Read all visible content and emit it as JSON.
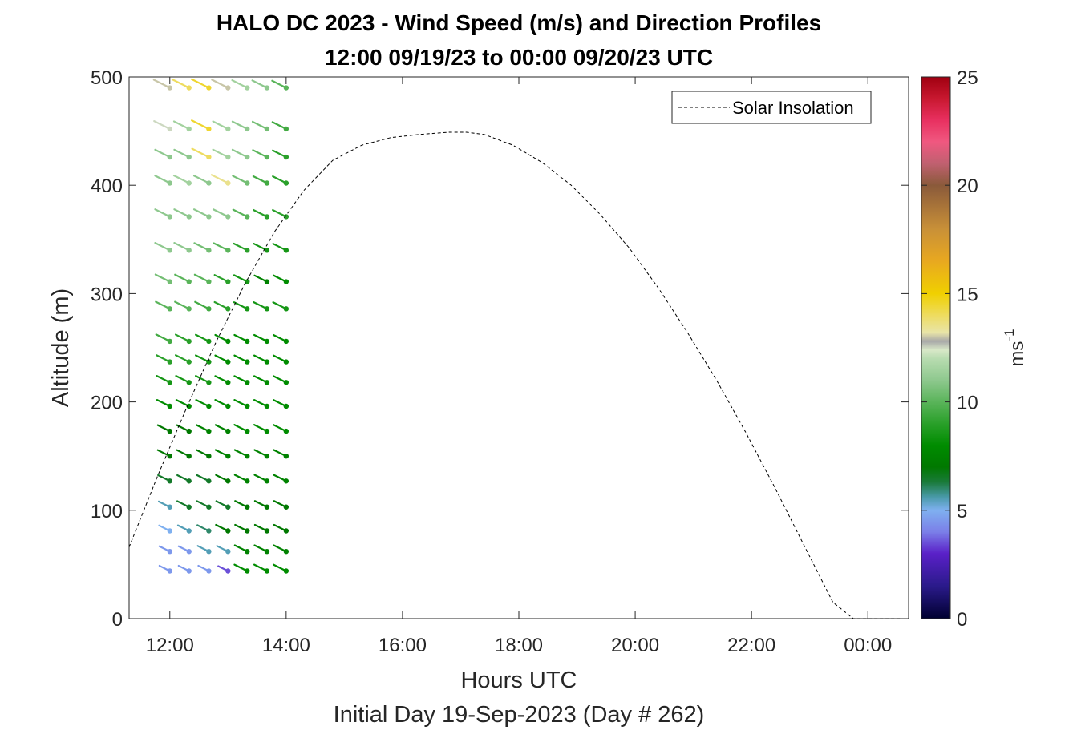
{
  "chart_data": {
    "type": "scatter",
    "title_line1": "HALO DC 2023 - Wind Speed (m/s) and Direction Profiles",
    "title_line2": "12:00 09/19/23 to 00:00 09/20/23  UTC",
    "xlabel": "Hours UTC",
    "ylabel": "Altitude (m)",
    "footer": "Initial Day 19-Sep-2023 (Day # 262)",
    "x_unit": "hours since 00:00 09/19/23 UTC",
    "xlim": [
      11.3,
      24.7
    ],
    "ylim": [
      0,
      500
    ],
    "x_ticks": [
      {
        "value": 12,
        "label": "12:00"
      },
      {
        "value": 14,
        "label": "14:00"
      },
      {
        "value": 16,
        "label": "16:00"
      },
      {
        "value": 18,
        "label": "18:00"
      },
      {
        "value": 20,
        "label": "20:00"
      },
      {
        "value": 22,
        "label": "22:00"
      },
      {
        "value": 24,
        "label": "00:00"
      }
    ],
    "y_ticks": [
      0,
      100,
      200,
      300,
      400,
      500
    ],
    "legend": {
      "label": "Solar Insolation",
      "position": "top-right"
    },
    "colorbar": {
      "label": "ms",
      "label_exponent": "-1",
      "min": 0,
      "max": 25,
      "ticks": [
        0,
        5,
        10,
        15,
        20,
        25
      ]
    },
    "solar_insolation": {
      "style": "dashed black",
      "x": [
        11.3,
        11.8,
        12.3,
        12.8,
        13.3,
        13.8,
        14.3,
        14.8,
        15.3,
        15.8,
        16.3,
        16.8,
        17.1,
        17.4,
        17.9,
        18.4,
        18.9,
        19.4,
        19.9,
        20.4,
        20.9,
        21.4,
        21.9,
        22.4,
        22.9,
        23.4,
        23.75,
        24.0,
        24.3,
        24.6
      ],
      "y": [
        66,
        133,
        196,
        256,
        310,
        357,
        395,
        423,
        437,
        444,
        447,
        449,
        449,
        447,
        437,
        421,
        400,
        373,
        342,
        305,
        264,
        220,
        172,
        121,
        68,
        15,
        0,
        0,
        0,
        0
      ]
    },
    "wind_barbs": {
      "times": [
        12.0,
        12.33,
        12.67,
        13.0,
        13.33,
        13.67,
        14.0
      ],
      "altitudes": [
        44,
        62,
        81,
        103,
        127,
        150,
        173,
        196,
        218,
        237,
        256,
        286,
        311,
        340,
        371,
        402,
        426,
        452,
        490
      ],
      "speed_rows": [
        [
          4.5,
          4.5,
          4.5,
          3.5,
          8.0,
          8.0,
          8.0
        ],
        [
          4.5,
          4.5,
          5.5,
          5.5,
          7.5,
          7.5,
          7.5
        ],
        [
          5.0,
          5.5,
          6.0,
          7.0,
          7.0,
          7.0,
          7.0
        ],
        [
          5.5,
          6.5,
          6.5,
          6.5,
          7.0,
          7.0,
          7.0
        ],
        [
          6.5,
          6.5,
          6.5,
          7.0,
          7.5,
          7.5,
          7.5
        ],
        [
          7.0,
          7.0,
          7.0,
          7.5,
          7.5,
          7.5,
          7.5
        ],
        [
          7.0,
          7.0,
          7.5,
          7.5,
          8.0,
          8.0,
          8.0
        ],
        [
          8.0,
          8.0,
          8.0,
          8.0,
          8.0,
          8.0,
          8.0
        ],
        [
          8.5,
          8.5,
          8.5,
          8.0,
          8.0,
          8.0,
          8.0
        ],
        [
          9.0,
          9.0,
          8.5,
          8.0,
          8.0,
          8.0,
          8.0
        ],
        [
          9.5,
          9.0,
          8.5,
          8.0,
          8.0,
          8.0,
          8.0
        ],
        [
          10.0,
          10.0,
          9.5,
          9.0,
          8.5,
          8.5,
          8.5
        ],
        [
          10.5,
          10.0,
          10.0,
          9.0,
          8.5,
          7.5,
          8.0
        ],
        [
          11.0,
          11.0,
          10.5,
          10.0,
          9.0,
          8.5,
          8.5
        ],
        [
          11.0,
          11.0,
          11.0,
          11.0,
          10.0,
          9.0,
          9.0
        ],
        [
          11.0,
          11.5,
          11.0,
          13.5,
          10.5,
          9.5,
          9.0
        ],
        [
          11.0,
          11.0,
          14.0,
          11.5,
          11.0,
          10.0,
          9.0
        ],
        [
          12.5,
          11.5,
          14.5,
          11.5,
          11.0,
          10.5,
          9.5
        ],
        [
          13.0,
          14.0,
          14.5,
          13.0,
          11.5,
          11.0,
          10.0
        ]
      ],
      "direction_from_deg": 300
    },
    "colors": {
      "colormap": [
        {
          "v": 0,
          "c": "#000030"
        },
        {
          "v": 1.5,
          "c": "#2a1a8a"
        },
        {
          "v": 3,
          "c": "#5a20c8"
        },
        {
          "v": 4,
          "c": "#7b7fe8"
        },
        {
          "v": 5,
          "c": "#7fb0f0"
        },
        {
          "v": 5.6,
          "c": "#4a9aaa"
        },
        {
          "v": 6.3,
          "c": "#1a7a3a"
        },
        {
          "v": 7,
          "c": "#007800"
        },
        {
          "v": 8,
          "c": "#008c00"
        },
        {
          "v": 9,
          "c": "#2aa02a"
        },
        {
          "v": 10,
          "c": "#5ab45a"
        },
        {
          "v": 11,
          "c": "#8ec88e"
        },
        {
          "v": 12,
          "c": "#b8dcb0"
        },
        {
          "v": 12.4,
          "c": "#d8e8c8"
        },
        {
          "v": 12.8,
          "c": "#a8a8a8"
        },
        {
          "v": 13.2,
          "c": "#e8e4a8"
        },
        {
          "v": 14,
          "c": "#eedc60"
        },
        {
          "v": 15,
          "c": "#f0d000"
        },
        {
          "v": 16.5,
          "c": "#e8a820"
        },
        {
          "v": 18,
          "c": "#c89038"
        },
        {
          "v": 20,
          "c": "#8a5a3a"
        },
        {
          "v": 21,
          "c": "#c06070"
        },
        {
          "v": 22,
          "c": "#f05880"
        },
        {
          "v": 23,
          "c": "#e83060"
        },
        {
          "v": 24,
          "c": "#c81830"
        },
        {
          "v": 25,
          "c": "#a00010"
        }
      ]
    }
  }
}
